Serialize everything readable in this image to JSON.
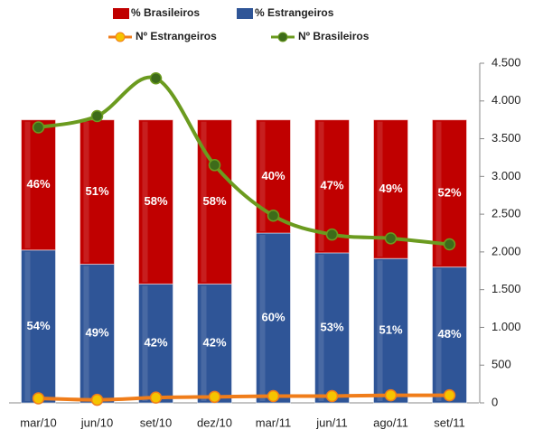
{
  "chart_data": {
    "type": "bar",
    "categories": [
      "mar/10",
      "jun/10",
      "set/10",
      "dez/10",
      "mar/11",
      "jun/11",
      "ago/11",
      "set/11"
    ],
    "stacked": true,
    "ylim": [
      0,
      120
    ],
    "y2lim": [
      0,
      4500
    ],
    "y2ticks": [
      0,
      500,
      {
        "value": 1000,
        "label": "1.000"
      },
      {
        "value": 1500,
        "label": "1.500"
      },
      {
        "value": 2000,
        "label": "2.000"
      },
      {
        "value": 2500,
        "label": "2.500"
      },
      {
        "value": 3000,
        "label": "3.000"
      },
      {
        "value": 3500,
        "label": "3.500"
      },
      {
        "value": 4000,
        "label": "4.000"
      },
      {
        "value": 4500,
        "label": "4.500"
      }
    ],
    "series": [
      {
        "name": "% Estrangeiros",
        "type": "bar",
        "color": "#2f5597",
        "values": [
          54,
          49,
          42,
          42,
          60,
          53,
          51,
          48
        ],
        "value_labels": [
          "54%",
          "49%",
          "42%",
          "42%",
          "60%",
          "53%",
          "51%",
          "48%"
        ]
      },
      {
        "name": "% Brasileiros",
        "type": "bar",
        "color": "#c00000",
        "values": [
          46,
          51,
          58,
          58,
          40,
          47,
          49,
          52
        ],
        "value_labels": [
          "46%",
          "51%",
          "58%",
          "58%",
          "40%",
          "47%",
          "49%",
          "52%"
        ]
      },
      {
        "name": "Nº Estrangeiros",
        "type": "line",
        "axis": "y2",
        "color": "#f07d1a",
        "marker_color": "#f5c400",
        "values": [
          60,
          40,
          70,
          80,
          90,
          90,
          100,
          100
        ]
      },
      {
        "name": "Nº Brasileiros",
        "type": "line",
        "axis": "y2",
        "color": "#6b9b1f",
        "marker_color": "#3d6b1a",
        "values": [
          3650,
          3800,
          4300,
          3150,
          2480,
          2230,
          2180,
          2100
        ]
      }
    ]
  }
}
